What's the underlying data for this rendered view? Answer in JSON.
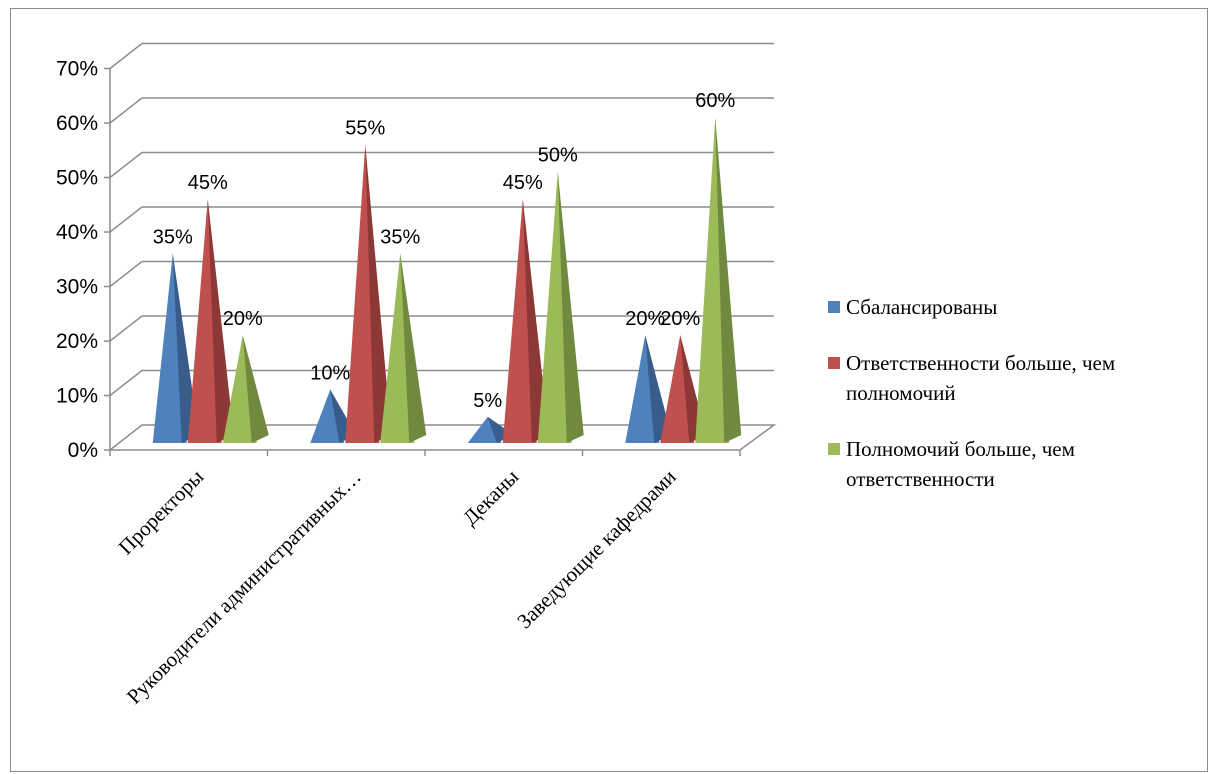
{
  "chart_data": {
    "type": "bar",
    "variant": "3d-cone",
    "categories": [
      "Проректоры",
      "Руководители административных…",
      "Деканы",
      "Заведующие кафедрами"
    ],
    "series": [
      {
        "name": "Сбалансированы",
        "values": [
          35,
          10,
          5,
          20
        ],
        "color": "#4f81bd",
        "dark": "#385d8a"
      },
      {
        "name": "Ответственности больше, чем полномочий",
        "values": [
          45,
          55,
          45,
          20
        ],
        "color": "#c0504d",
        "dark": "#8c3836"
      },
      {
        "name": "Полномочий больше, чем ответственности",
        "values": [
          20,
          35,
          50,
          60
        ],
        "color": "#9bbb59",
        "dark": "#71893f"
      }
    ],
    "data_labels": [
      [
        "35%",
        "10%",
        "5%",
        "20%"
      ],
      [
        "45%",
        "55%",
        "45%",
        "20%"
      ],
      [
        "20%",
        "35%",
        "50%",
        "60%"
      ]
    ],
    "y_ticks": [
      "0%",
      "10%",
      "20%",
      "30%",
      "40%",
      "50%",
      "60%",
      "70%"
    ],
    "ylim": [
      0,
      70
    ],
    "grid": true,
    "legend_position": "right",
    "title": "",
    "xlabel": "",
    "ylabel": ""
  },
  "legend": {
    "items": [
      {
        "label": "Сбалансированы"
      },
      {
        "label": "Ответственности больше, чем полномочий"
      },
      {
        "label": "Полномочий больше, чем ответственности"
      }
    ]
  }
}
